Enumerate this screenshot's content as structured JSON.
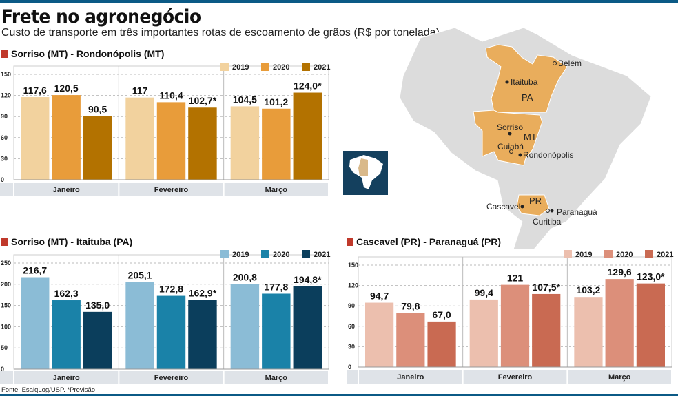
{
  "header": {
    "title": "Frete no agronegócio",
    "subtitle": "Custo de transporte em três importantes rotas de escoamento de grãos (R$ por tonelada)"
  },
  "source": "Fonte: EsalqLog/USP. *Previsão",
  "map": {
    "highlight_color": "#e9ad5c",
    "base_color": "#dcdcdc",
    "inset_bg": "#14405e",
    "states": [
      "PA",
      "MT",
      "PR"
    ],
    "cities": [
      "Belém",
      "Itaituba",
      "Sorriso",
      "Cuiabá",
      "Rondonópolis",
      "Cascavel",
      "Paranaguá",
      "Curitiba"
    ]
  },
  "chart_data": [
    {
      "type": "bar",
      "title": "Sorriso (MT) - Rondonópolis (MT)",
      "categories": [
        "Janeiro",
        "Fevereiro",
        "Março"
      ],
      "yticks": [
        0,
        30,
        60,
        90,
        120,
        150
      ],
      "ylim": [
        0,
        150
      ],
      "grid": true,
      "legend": "top-right",
      "series": [
        {
          "name": "2019",
          "color": "#f2d29e",
          "values": [
            117.6,
            117,
            104.5
          ],
          "labels": [
            "117,6",
            "117",
            "104,5"
          ]
        },
        {
          "name": "2020",
          "color": "#e89c3a",
          "values": [
            120.5,
            110.4,
            101.2
          ],
          "labels": [
            "120,5",
            "110,4",
            "101,2"
          ]
        },
        {
          "name": "2021",
          "color": "#b37200",
          "values": [
            90.5,
            102.7,
            124.0
          ],
          "labels": [
            "90,5",
            "102,7*",
            "124,0*"
          ]
        }
      ]
    },
    {
      "type": "bar",
      "title": "Sorriso (MT) -  Itaituba (PA)",
      "categories": [
        "Janeiro",
        "Fevereiro",
        "Março"
      ],
      "yticks": [
        0,
        50,
        100,
        150,
        200,
        250
      ],
      "ylim": [
        0,
        250
      ],
      "grid": true,
      "legend": "top-right",
      "series": [
        {
          "name": "2019",
          "color": "#8bbcd6",
          "values": [
            216.7,
            205.1,
            200.8
          ],
          "labels": [
            "216,7",
            "205,1",
            "200,8"
          ]
        },
        {
          "name": "2020",
          "color": "#1a82a8",
          "values": [
            162.3,
            172.8,
            177.8
          ],
          "labels": [
            "162,3",
            "172,8",
            "177,8"
          ]
        },
        {
          "name": "2021",
          "color": "#0b3e5c",
          "values": [
            135.0,
            162.9,
            194.8
          ],
          "labels": [
            "135,0",
            "162,9*",
            "194,8*"
          ]
        }
      ]
    },
    {
      "type": "bar",
      "title": "Cascavel (PR) - Paranaguá (PR)",
      "categories": [
        "Janeiro",
        "Fevereiro",
        "Março"
      ],
      "yticks": [
        0,
        30,
        60,
        90,
        120,
        150
      ],
      "ylim": [
        0,
        150
      ],
      "grid": true,
      "legend": "top-right",
      "series": [
        {
          "name": "2019",
          "color": "#ecbfae",
          "values": [
            94.7,
            99.4,
            103.2
          ],
          "labels": [
            "94,7",
            "99,4",
            "103,2"
          ]
        },
        {
          "name": "2020",
          "color": "#dc8f7a",
          "values": [
            79.8,
            121,
            129.6
          ],
          "labels": [
            "79,8",
            "121",
            "129,6"
          ]
        },
        {
          "name": "2021",
          "color": "#c96a52",
          "values": [
            67.0,
            107.5,
            123.0
          ],
          "labels": [
            "67,0",
            "107,5*",
            "123,0*"
          ]
        }
      ]
    }
  ]
}
